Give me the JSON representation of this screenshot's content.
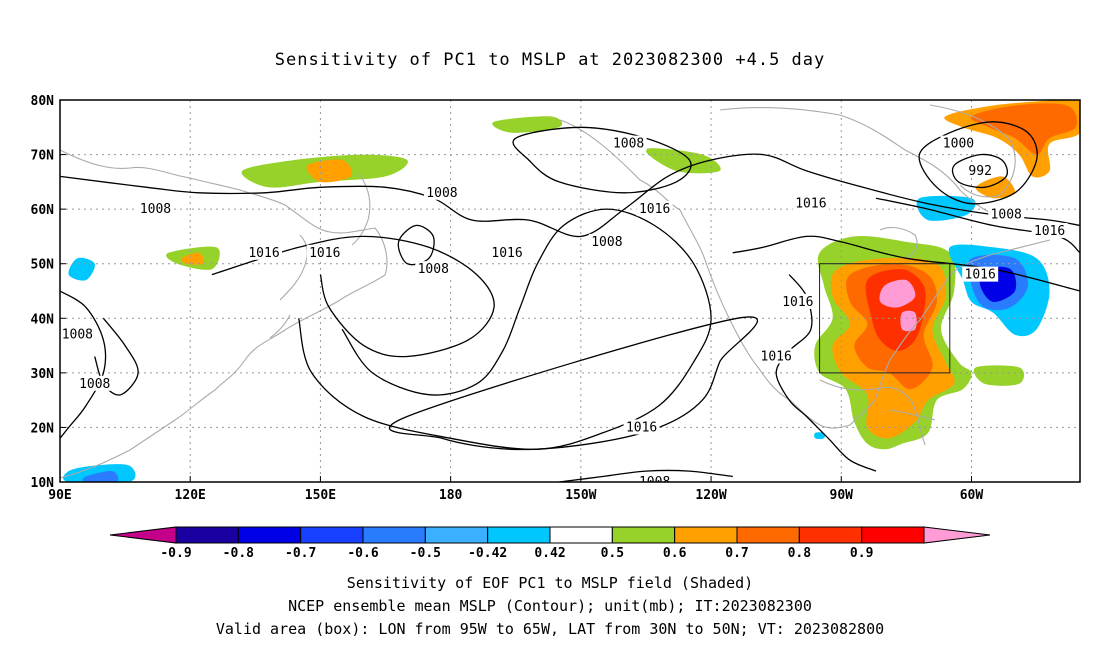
{
  "title": "Sensitivity of PC1 to MSLP at 2023082300 +4.5 day",
  "captions": {
    "line1": "Sensitivity of EOF PC1 to MSLP field (Shaded)",
    "line2": "NCEP ensemble mean MSLP (Contour); unit(mb); IT:2023082300",
    "line3": "Valid area (box): LON from 95W to 65W, LAT from 30N to 50N; VT: 2023082800"
  },
  "axes": {
    "lon_labels": [
      "90E",
      "120E",
      "150E",
      "180",
      "150W",
      "120W",
      "90W",
      "60W"
    ],
    "lon_values_east": [
      90,
      120,
      150,
      180,
      210,
      240,
      270,
      300
    ],
    "lat_labels": [
      "10N",
      "20N",
      "30N",
      "40N",
      "50N",
      "60N",
      "70N",
      "80N"
    ],
    "lat_values": [
      10,
      20,
      30,
      40,
      50,
      60,
      70,
      80
    ],
    "lon_range_east": [
      90,
      325
    ],
    "lat_range": [
      10,
      80
    ]
  },
  "valid_box": {
    "lon_min_east": 265,
    "lon_max_east": 295,
    "lat_min": 30,
    "lat_max": 50
  },
  "colorbar": {
    "tick_labels": [
      "-0.9",
      "-0.8",
      "-0.7",
      "-0.6",
      "-0.5",
      "-0.42",
      "0.42",
      "0.5",
      "0.6",
      "0.7",
      "0.8",
      "0.9"
    ],
    "colors": [
      "#c4008a",
      "#1a00a0",
      "#0000e6",
      "#1840ff",
      "#2a7cff",
      "#3ab0ff",
      "#00c8ff",
      "#ffffff",
      "#96d22a",
      "#ffa000",
      "#ff6a00",
      "#ff3000",
      "#ff0000",
      "#ff9cd6"
    ]
  },
  "contour_labels": [
    {
      "text": "1008",
      "lon": 112,
      "lat": 60
    },
    {
      "text": "1016",
      "lon": 137,
      "lat": 52
    },
    {
      "text": "1016",
      "lon": 151,
      "lat": 52
    },
    {
      "text": "1008",
      "lon": 178,
      "lat": 63
    },
    {
      "text": "1008",
      "lon": 176,
      "lat": 49
    },
    {
      "text": "1016",
      "lon": 193,
      "lat": 52
    },
    {
      "text": "1008",
      "lon": 216,
      "lat": 54
    },
    {
      "text": "1008",
      "lon": 221,
      "lat": 72
    },
    {
      "text": "1016",
      "lon": 227,
      "lat": 60
    },
    {
      "text": "1016",
      "lon": 263,
      "lat": 61
    },
    {
      "text": "1000",
      "lon": 297,
      "lat": 72
    },
    {
      "text": "992",
      "lon": 302,
      "lat": 67
    },
    {
      "text": "1008",
      "lon": 308,
      "lat": 59
    },
    {
      "text": "1016",
      "lon": 318,
      "lat": 56
    },
    {
      "text": "1016",
      "lon": 302,
      "lat": 48
    },
    {
      "text": "1016",
      "lon": 260,
      "lat": 43
    },
    {
      "text": "1016",
      "lon": 255,
      "lat": 33
    },
    {
      "text": "1008",
      "lon": 94,
      "lat": 37
    },
    {
      "text": "1008",
      "lon": 98,
      "lat": 28
    },
    {
      "text": "1016",
      "lon": 224,
      "lat": 20
    },
    {
      "text": "1008",
      "lon": 227,
      "lat": 10
    }
  ],
  "shaded_regions": [
    {
      "value": 0.5,
      "color": "#96d22a",
      "points": [
        [
          265,
          52
        ],
        [
          273,
          55
        ],
        [
          285,
          54
        ],
        [
          295,
          52
        ],
        [
          296,
          45
        ],
        [
          293,
          38
        ],
        [
          297,
          32
        ],
        [
          300,
          30
        ],
        [
          298,
          27
        ],
        [
          292,
          25
        ],
        [
          290,
          19
        ],
        [
          284,
          17
        ],
        [
          280,
          16
        ],
        [
          276,
          17
        ],
        [
          273,
          21
        ],
        [
          271,
          27
        ],
        [
          265,
          30
        ],
        [
          264,
          35
        ],
        [
          268,
          40
        ],
        [
          266,
          46
        ]
      ]
    },
    {
      "value": 0.6,
      "color": "#ffa000",
      "points": [
        [
          269,
          49
        ],
        [
          280,
          51
        ],
        [
          292,
          50
        ],
        [
          294,
          44
        ],
        [
          291,
          38
        ],
        [
          294,
          32
        ],
        [
          296,
          28
        ],
        [
          290,
          25
        ],
        [
          287,
          21
        ],
        [
          281,
          18
        ],
        [
          276,
          20
        ],
        [
          276,
          26
        ],
        [
          270,
          30
        ],
        [
          268,
          35
        ],
        [
          272,
          39
        ],
        [
          268,
          44
        ]
      ]
    },
    {
      "value": 0.7,
      "color": "#ff6a00",
      "points": [
        [
          272,
          48
        ],
        [
          282,
          50
        ],
        [
          290,
          48
        ],
        [
          292,
          43
        ],
        [
          289,
          37
        ],
        [
          291,
          31
        ],
        [
          286,
          27
        ],
        [
          281,
          30
        ],
        [
          276,
          31
        ],
        [
          273,
          35
        ],
        [
          276,
          39
        ],
        [
          272,
          43
        ]
      ]
    },
    {
      "value": 0.8,
      "color": "#ff3000",
      "points": [
        [
          276,
          47
        ],
        [
          284,
          49
        ],
        [
          289,
          46
        ],
        [
          289,
          41
        ],
        [
          287,
          36
        ],
        [
          283,
          34
        ],
        [
          279,
          36
        ],
        [
          277,
          40
        ]
      ]
    },
    {
      "value": 0.9,
      "color": "#ff9cd6",
      "points": [
        [
          280,
          46
        ],
        [
          285,
          47
        ],
        [
          287,
          44
        ],
        [
          283,
          42
        ],
        [
          279,
          43
        ]
      ]
    },
    {
      "value": 0.9,
      "color": "#ff9cd6",
      "points": [
        [
          284,
          41
        ],
        [
          287,
          41
        ],
        [
          287,
          38
        ],
        [
          284,
          38
        ]
      ]
    },
    {
      "value": 0.6,
      "color": "#ffa000",
      "points": [
        [
          294,
          77
        ],
        [
          305,
          79
        ],
        [
          320,
          80
        ],
        [
          325,
          80
        ],
        [
          325,
          74
        ],
        [
          318,
          72
        ],
        [
          318,
          67
        ],
        [
          314,
          66
        ],
        [
          311,
          70
        ],
        [
          306,
          73
        ],
        [
          298,
          75
        ]
      ]
    },
    {
      "value": 0.7,
      "color": "#ff6a00",
      "points": [
        [
          300,
          77
        ],
        [
          310,
          79
        ],
        [
          322,
          79
        ],
        [
          324,
          75
        ],
        [
          318,
          73
        ],
        [
          315,
          70
        ],
        [
          310,
          73
        ],
        [
          304,
          75
        ]
      ]
    },
    {
      "value": 0.6,
      "color": "#ffa000",
      "points": [
        [
          301,
          64
        ],
        [
          307,
          66
        ],
        [
          310,
          63
        ],
        [
          305,
          62
        ]
      ]
    },
    {
      "value": 0.5,
      "color": "#96d22a",
      "points": [
        [
          132,
          67
        ],
        [
          144,
          69
        ],
        [
          160,
          70
        ],
        [
          170,
          69
        ],
        [
          165,
          66
        ],
        [
          150,
          65
        ],
        [
          138,
          64
        ]
      ]
    },
    {
      "value": 0.6,
      "color": "#ffa000",
      "points": [
        [
          147,
          68
        ],
        [
          155,
          69
        ],
        [
          157,
          66
        ],
        [
          150,
          65
        ]
      ]
    },
    {
      "value": 0.5,
      "color": "#96d22a",
      "points": [
        [
          225,
          71
        ],
        [
          238,
          70
        ],
        [
          242,
          67
        ],
        [
          232,
          67
        ]
      ]
    },
    {
      "value": 0.5,
      "color": "#96d22a",
      "points": [
        [
          190,
          76
        ],
        [
          203,
          77
        ],
        [
          205,
          75
        ],
        [
          194,
          74
        ]
      ]
    },
    {
      "value": 0.5,
      "color": "#96d22a",
      "points": [
        [
          115,
          52
        ],
        [
          126,
          53
        ],
        [
          125,
          49
        ],
        [
          117,
          50
        ]
      ]
    },
    {
      "value": 0.6,
      "color": "#ffa000",
      "points": [
        [
          118,
          51
        ],
        [
          122,
          52
        ],
        [
          123,
          50
        ],
        [
          119,
          50
        ]
      ]
    },
    {
      "value": 0.5,
      "color": "#96d22a",
      "points": [
        [
          301,
          31
        ],
        [
          311,
          31
        ],
        [
          311,
          28
        ],
        [
          303,
          28
        ]
      ]
    },
    {
      "value": -0.42,
      "color": "#00c8ff",
      "points": [
        [
          288,
          62
        ],
        [
          300,
          62
        ],
        [
          299,
          59
        ],
        [
          290,
          58
        ]
      ]
    },
    {
      "value": -0.42,
      "color": "#00c8ff",
      "points": [
        [
          295,
          53
        ],
        [
          305,
          53
        ],
        [
          315,
          51
        ],
        [
          318,
          45
        ],
        [
          315,
          38
        ],
        [
          310,
          37
        ],
        [
          305,
          41
        ],
        [
          300,
          43
        ],
        [
          298,
          47
        ]
      ]
    },
    {
      "value": -0.5,
      "color": "#2a7cff",
      "points": [
        [
          300,
          51
        ],
        [
          310,
          51
        ],
        [
          313,
          46
        ],
        [
          309,
          42
        ],
        [
          303,
          42
        ],
        [
          300,
          46
        ]
      ]
    },
    {
      "value": -0.6,
      "color": "#0000e6",
      "points": [
        [
          303,
          49
        ],
        [
          309,
          49
        ],
        [
          310,
          45
        ],
        [
          305,
          43
        ],
        [
          302,
          46
        ]
      ]
    },
    {
      "value": -0.42,
      "color": "#00c8ff",
      "points": [
        [
          92,
          12
        ],
        [
          98,
          13
        ],
        [
          106,
          13
        ],
        [
          106,
          10
        ],
        [
          92,
          10
        ]
      ]
    },
    {
      "value": -0.5,
      "color": "#2a7cff",
      "points": [
        [
          96,
          11
        ],
        [
          102,
          12
        ],
        [
          103,
          10
        ],
        [
          96,
          10
        ]
      ]
    },
    {
      "value": -0.42,
      "color": "#00c8ff",
      "points": [
        [
          92,
          48
        ],
        [
          94,
          51
        ],
        [
          98,
          50
        ],
        [
          96,
          47
        ]
      ]
    },
    {
      "value": -0.42,
      "color": "#00c8ff",
      "points": [
        [
          264,
          19
        ],
        [
          266,
          19
        ],
        [
          266,
          18
        ],
        [
          264,
          18
        ]
      ]
    }
  ],
  "contours": [
    {
      "value": 1016,
      "points": [
        [
          125,
          48
        ],
        [
          145,
          53
        ],
        [
          160,
          55
        ],
        [
          175,
          53
        ],
        [
          186,
          48
        ],
        [
          190,
          42
        ],
        [
          184,
          36
        ],
        [
          170,
          33
        ],
        [
          160,
          35
        ],
        [
          152,
          42
        ],
        [
          150,
          48
        ]
      ]
    },
    {
      "value": 1016,
      "points": [
        [
          145,
          40
        ],
        [
          148,
          30
        ],
        [
          160,
          22
        ],
        [
          180,
          18
        ],
        [
          200,
          16
        ],
        [
          215,
          19
        ],
        [
          228,
          24
        ],
        [
          236,
          32
        ],
        [
          240,
          40
        ],
        [
          236,
          50
        ],
        [
          227,
          57
        ],
        [
          216,
          60
        ],
        [
          206,
          57
        ],
        [
          200,
          50
        ],
        [
          196,
          42
        ],
        [
          192,
          34
        ],
        [
          186,
          28
        ],
        [
          175,
          26
        ],
        [
          162,
          30
        ],
        [
          155,
          38
        ]
      ]
    },
    {
      "value": 1008,
      "points": [
        [
          90,
          66
        ],
        [
          110,
          64
        ],
        [
          122,
          63
        ],
        [
          137,
          63
        ],
        [
          150,
          64
        ],
        [
          165,
          64
        ],
        [
          176,
          62
        ],
        [
          185,
          58
        ],
        [
          198,
          58
        ],
        [
          210,
          55
        ],
        [
          220,
          60
        ],
        [
          230,
          66
        ],
        [
          240,
          69
        ],
        [
          252,
          70
        ],
        [
          262,
          67
        ],
        [
          275,
          64
        ],
        [
          290,
          61
        ],
        [
          305,
          59
        ],
        [
          318,
          58
        ],
        [
          325,
          57
        ]
      ]
    },
    {
      "value": 1008,
      "points": [
        [
          195,
          73
        ],
        [
          210,
          75
        ],
        [
          225,
          73
        ],
        [
          235,
          69
        ],
        [
          232,
          65
        ],
        [
          220,
          63
        ],
        [
          205,
          65
        ],
        [
          198,
          69
        ]
      ]
    },
    {
      "value": 1008,
      "points": [
        [
          168,
          54
        ],
        [
          172,
          57
        ],
        [
          176,
          55
        ],
        [
          175,
          51
        ],
        [
          170,
          50
        ]
      ]
    },
    {
      "value": 1000,
      "points": [
        [
          288,
          70
        ],
        [
          295,
          74
        ],
        [
          305,
          76
        ],
        [
          313,
          74
        ],
        [
          315,
          69
        ],
        [
          310,
          63
        ],
        [
          300,
          61
        ],
        [
          292,
          64
        ]
      ]
    },
    {
      "value": 992,
      "points": [
        [
          296,
          68
        ],
        [
          302,
          70
        ],
        [
          307,
          69
        ],
        [
          308,
          66
        ],
        [
          303,
          64
        ],
        [
          297,
          65
        ]
      ]
    },
    {
      "value": 1016,
      "points": [
        [
          278,
          62
        ],
        [
          290,
          60
        ],
        [
          305,
          57
        ],
        [
          320,
          55
        ],
        [
          325,
          52
        ]
      ]
    },
    {
      "value": 1016,
      "points": [
        [
          245,
          52
        ],
        [
          252,
          53
        ],
        [
          262,
          55
        ],
        [
          270,
          54
        ],
        [
          285,
          51
        ],
        [
          305,
          49
        ],
        [
          325,
          45
        ]
      ]
    },
    {
      "value": 1016,
      "points": [
        [
          258,
          48
        ],
        [
          262,
          44
        ],
        [
          263,
          38
        ],
        [
          258,
          34
        ],
        [
          255,
          30
        ],
        [
          258,
          25
        ],
        [
          262,
          22
        ],
        [
          267,
          18
        ],
        [
          272,
          14
        ],
        [
          278,
          12
        ]
      ]
    },
    {
      "value": 1008,
      "points": [
        [
          90,
          45
        ],
        [
          96,
          42
        ],
        [
          100,
          36
        ],
        [
          100,
          30
        ],
        [
          96,
          24
        ],
        [
          92,
          20
        ],
        [
          90,
          18
        ]
      ]
    },
    {
      "value": 1008,
      "points": [
        [
          100,
          40
        ],
        [
          105,
          35
        ],
        [
          108,
          30
        ],
        [
          104,
          26
        ],
        [
          100,
          28
        ],
        [
          98,
          33
        ]
      ]
    },
    {
      "value": 1016,
      "points": [
        [
          170,
          22
        ],
        [
          178,
          18
        ],
        [
          194,
          16
        ],
        [
          212,
          17
        ],
        [
          228,
          20
        ],
        [
          238,
          25
        ],
        [
          242,
          32
        ],
        [
          246,
          40
        ]
      ]
    },
    {
      "value": 1008,
      "points": [
        [
          205,
          10
        ],
        [
          215,
          11
        ],
        [
          225,
          12
        ],
        [
          235,
          12
        ],
        [
          245,
          11
        ]
      ]
    }
  ]
}
